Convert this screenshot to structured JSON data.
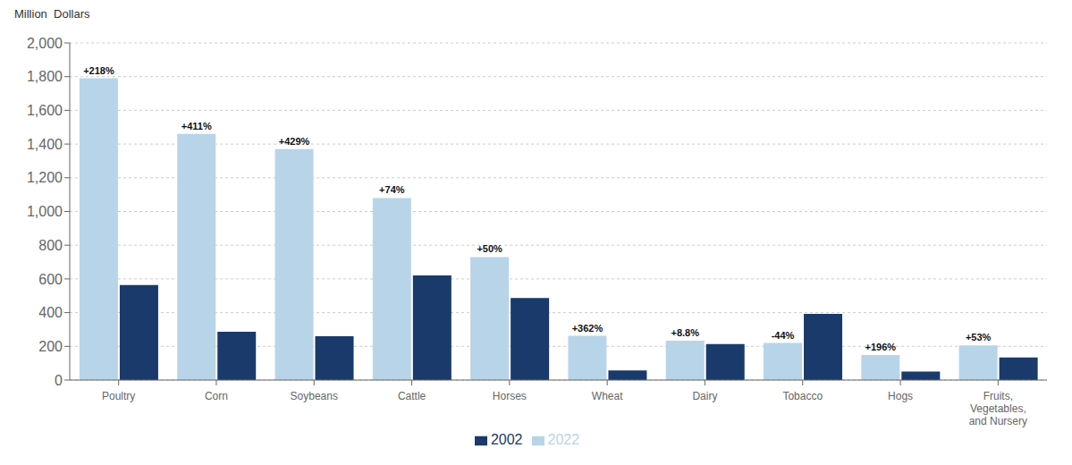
{
  "chart_data": {
    "type": "bar",
    "y_label": "Million  Dollars",
    "categories": [
      "Poultry",
      "Corn",
      "Soybeans",
      "Cattle",
      "Horses",
      "Wheat",
      "Dairy",
      "Tobacco",
      "Hogs",
      "Fruits,\nVegetables,\nand Nursery"
    ],
    "series": [
      {
        "name": "2022",
        "color": "#b8d4e8",
        "values": [
          1790,
          1460,
          1370,
          1080,
          730,
          262,
          233,
          220,
          148,
          205
        ]
      },
      {
        "name": "2002",
        "color": "#1a3a6b",
        "values": [
          563,
          286,
          260,
          621,
          487,
          57,
          214,
          393,
          50,
          134
        ]
      }
    ],
    "annotations": [
      {
        "category": "Poultry",
        "series": "2022",
        "text": "+218%"
      },
      {
        "category": "Corn",
        "series": "2022",
        "text": "+411%"
      },
      {
        "category": "Soybeans",
        "series": "2022",
        "text": "+429%"
      },
      {
        "category": "Cattle",
        "series": "2022",
        "text": "+74%"
      },
      {
        "category": "Horses",
        "series": "2022",
        "text": "+50%"
      },
      {
        "category": "Wheat",
        "series": "2022",
        "text": "+362%"
      },
      {
        "category": "Dairy",
        "series": "2022",
        "text": "+8.8%"
      },
      {
        "category": "Tobacco",
        "series": "2022",
        "text": "-44%"
      },
      {
        "category": "Hogs",
        "series": "2022",
        "text": "+196%"
      },
      {
        "category": "Fruits,\nVegetables,\nand Nursery",
        "series": "2022",
        "text": "+53%"
      }
    ],
    "ylim": [
      0,
      2000
    ],
    "yticks": [
      0,
      200,
      400,
      600,
      800,
      {
        "value": 1000,
        "label": "1,000"
      },
      {
        "value": 1200,
        "label": "1,200"
      },
      {
        "value": 1400,
        "label": "1,400"
      },
      {
        "value": 1600,
        "label": "1,600"
      },
      {
        "value": 1800,
        "label": "1,800"
      },
      {
        "value": 2000,
        "label": "2,000"
      }
    ],
    "grid": true,
    "legend": "bottom"
  }
}
